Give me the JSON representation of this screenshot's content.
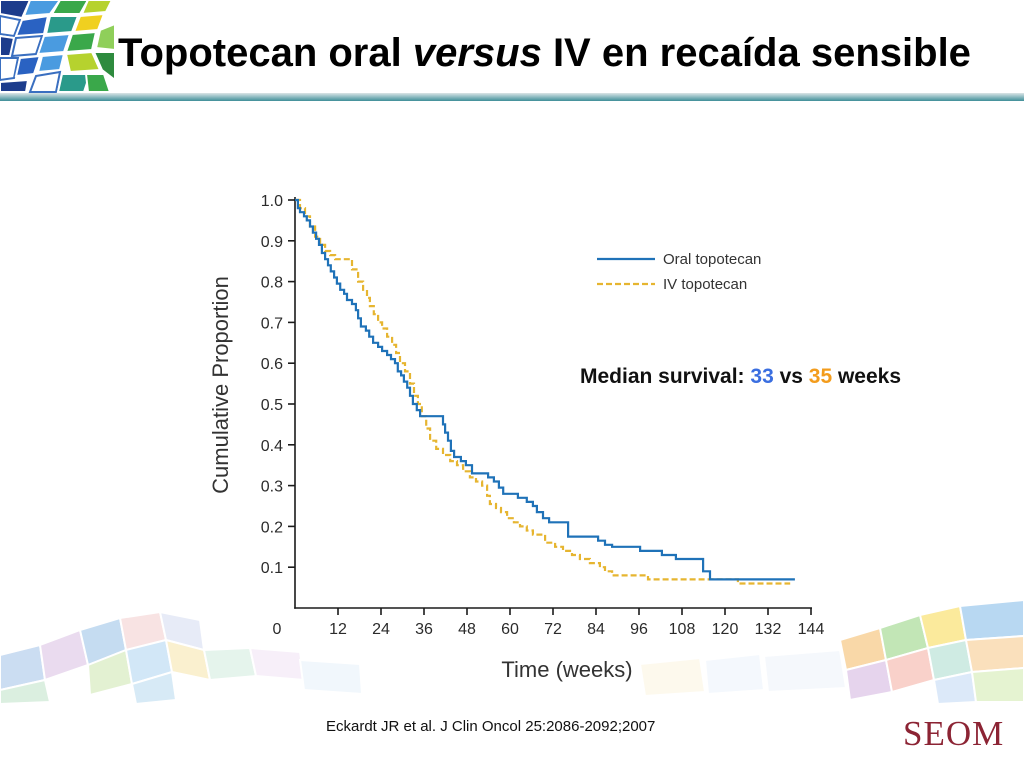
{
  "slide": {
    "title": {
      "before": "Topotecan oral ",
      "italic": "versus",
      "after": " IV en recaída sensible"
    },
    "citation": "Eckardt JR et al. J Clin Oncol 25:2086-2092;2007",
    "logo_text": "SEOM"
  },
  "decorations": {
    "header_logo_icon": "mosaic-logo-icon",
    "footer_band": "mosaic-band-decoration"
  },
  "colors": {
    "title_text": "#000000",
    "header_rule": "#3f8e98",
    "logo_text": "#8c2434"
  },
  "chart_data": {
    "type": "line",
    "step": true,
    "xlabel": "Time (weeks)",
    "ylabel": "Cumulative Proportion",
    "xlim": [
      0,
      144
    ],
    "ylim": [
      0,
      1.0
    ],
    "xticks": [
      "0",
      "12",
      "24",
      "36",
      "48",
      "60",
      "72",
      "84",
      "96",
      "108",
      "120",
      "132",
      "144"
    ],
    "yticks": [
      "1.0",
      "0.9",
      "0.8",
      "0.7",
      "0.6",
      "0.5",
      "0.4",
      "0.3",
      "0.2",
      "0.1"
    ],
    "grid": false,
    "legend_position": "upper-right",
    "series": [
      {
        "name": "Oral topotecan",
        "color": "#1f72b8",
        "points": [
          [
            0,
            1.0
          ],
          [
            0.8,
            0.98
          ],
          [
            1.4,
            0.97
          ],
          [
            2.5,
            0.96
          ],
          [
            3.3,
            0.95
          ],
          [
            4.2,
            0.935
          ],
          [
            5.0,
            0.92
          ],
          [
            5.9,
            0.905
          ],
          [
            6.7,
            0.89
          ],
          [
            7.5,
            0.87
          ],
          [
            8.4,
            0.855
          ],
          [
            9.2,
            0.84
          ],
          [
            10.0,
            0.825
          ],
          [
            10.9,
            0.81
          ],
          [
            11.7,
            0.795
          ],
          [
            12.6,
            0.78
          ],
          [
            13.7,
            0.77
          ],
          [
            14.5,
            0.755
          ],
          [
            15.9,
            0.745
          ],
          [
            17.0,
            0.73
          ],
          [
            17.6,
            0.71
          ],
          [
            18.4,
            0.69
          ],
          [
            19.8,
            0.68
          ],
          [
            20.7,
            0.665
          ],
          [
            21.8,
            0.65
          ],
          [
            23.2,
            0.64
          ],
          [
            24.3,
            0.63
          ],
          [
            25.7,
            0.62
          ],
          [
            26.8,
            0.61
          ],
          [
            27.9,
            0.6
          ],
          [
            28.7,
            0.58
          ],
          [
            29.6,
            0.57
          ],
          [
            30.4,
            0.555
          ],
          [
            31.3,
            0.54
          ],
          [
            32.1,
            0.52
          ],
          [
            32.9,
            0.5
          ],
          [
            34.0,
            0.485
          ],
          [
            34.9,
            0.47
          ],
          [
            41.3,
            0.45
          ],
          [
            41.9,
            0.43
          ],
          [
            42.7,
            0.41
          ],
          [
            43.5,
            0.385
          ],
          [
            44.4,
            0.37
          ],
          [
            46.3,
            0.36
          ],
          [
            47.7,
            0.35
          ],
          [
            49.4,
            0.33
          ],
          [
            53.9,
            0.32
          ],
          [
            55.5,
            0.31
          ],
          [
            56.9,
            0.295
          ],
          [
            58.1,
            0.28
          ],
          [
            62.2,
            0.27
          ],
          [
            64.7,
            0.26
          ],
          [
            66.4,
            0.25
          ],
          [
            67.5,
            0.235
          ],
          [
            69.2,
            0.22
          ],
          [
            70.9,
            0.21
          ],
          [
            76.2,
            0.175
          ],
          [
            84.6,
            0.165
          ],
          [
            86.5,
            0.155
          ],
          [
            88.5,
            0.15
          ],
          [
            96.3,
            0.14
          ],
          [
            102.4,
            0.13
          ],
          [
            106.3,
            0.12
          ],
          [
            113.9,
            0.09
          ],
          [
            115.8,
            0.07
          ],
          [
            139.5,
            0.07
          ]
        ]
      },
      {
        "name": "IV topotecan",
        "color": "#e6b530",
        "points": [
          [
            0,
            1.0
          ],
          [
            1.4,
            0.98
          ],
          [
            2.8,
            0.96
          ],
          [
            4.2,
            0.935
          ],
          [
            5.6,
            0.91
          ],
          [
            7.0,
            0.89
          ],
          [
            8.4,
            0.875
          ],
          [
            9.8,
            0.865
          ],
          [
            11.2,
            0.855
          ],
          [
            15.9,
            0.83
          ],
          [
            17.6,
            0.8
          ],
          [
            19.0,
            0.78
          ],
          [
            20.1,
            0.76
          ],
          [
            20.9,
            0.74
          ],
          [
            22.0,
            0.72
          ],
          [
            23.2,
            0.7
          ],
          [
            24.3,
            0.685
          ],
          [
            25.7,
            0.665
          ],
          [
            27.1,
            0.645
          ],
          [
            28.2,
            0.625
          ],
          [
            29.3,
            0.6
          ],
          [
            30.7,
            0.58
          ],
          [
            32.1,
            0.55
          ],
          [
            33.2,
            0.52
          ],
          [
            34.3,
            0.5
          ],
          [
            35.4,
            0.47
          ],
          [
            36.6,
            0.44
          ],
          [
            37.7,
            0.41
          ],
          [
            39.4,
            0.39
          ],
          [
            41.3,
            0.375
          ],
          [
            43.3,
            0.36
          ],
          [
            45.2,
            0.35
          ],
          [
            46.9,
            0.335
          ],
          [
            48.8,
            0.32
          ],
          [
            50.5,
            0.31
          ],
          [
            52.2,
            0.3
          ],
          [
            53.6,
            0.275
          ],
          [
            54.4,
            0.255
          ],
          [
            56.1,
            0.245
          ],
          [
            57.5,
            0.235
          ],
          [
            59.2,
            0.22
          ],
          [
            61.1,
            0.21
          ],
          [
            62.8,
            0.2
          ],
          [
            64.7,
            0.19
          ],
          [
            66.4,
            0.18
          ],
          [
            69.8,
            0.16
          ],
          [
            72.6,
            0.15
          ],
          [
            74.8,
            0.14
          ],
          [
            77.3,
            0.13
          ],
          [
            79.5,
            0.12
          ],
          [
            82.3,
            0.11
          ],
          [
            85.1,
            0.1
          ],
          [
            86.5,
            0.09
          ],
          [
            88.5,
            0.08
          ],
          [
            98.5,
            0.07
          ],
          [
            123.6,
            0.06
          ],
          [
            138.2,
            0.06
          ]
        ]
      }
    ],
    "annotation": {
      "prefix": "Median survival: ",
      "oral_median": "33",
      "middle": " vs ",
      "iv_median": "35",
      "suffix": " weeks",
      "oral_color": "#3a6ee0",
      "iv_color": "#f39c1c"
    }
  }
}
